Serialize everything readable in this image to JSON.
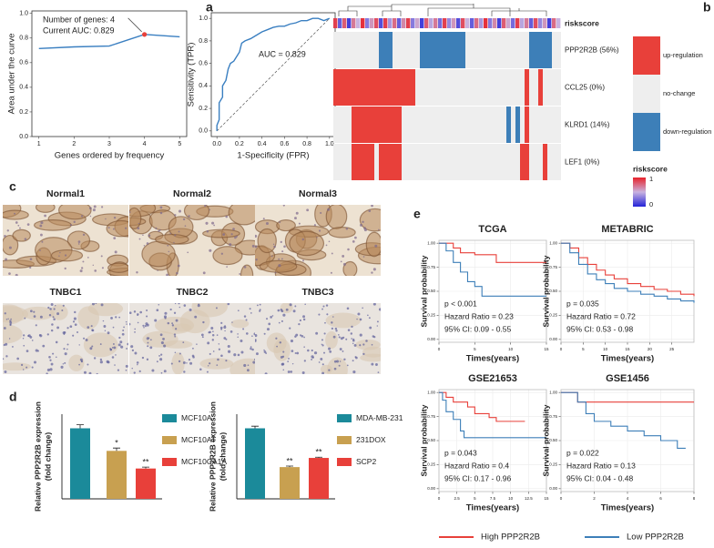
{
  "chart_data": [
    {
      "type": "line",
      "label": "a",
      "xlabel": "Genes ordered by frequency",
      "ylabel": "Area under the curve",
      "x": [
        1,
        2,
        3,
        4,
        5
      ],
      "values": [
        0.715,
        0.728,
        0.735,
        0.829,
        0.81
      ],
      "color": "#3a7fc1",
      "highlight_x": 4,
      "highlight_color": "#e8403a",
      "annotations": [
        "Number of genes: 4",
        "Current AUC: 0.829"
      ],
      "annotation_color": "#e8403a",
      "xlim": [
        0.8,
        5.2
      ],
      "ylim": [
        0,
        1.02
      ],
      "xticks": [
        1,
        2,
        3,
        4,
        5
      ],
      "yticks": [
        {
          "value": 0,
          "label": "0.0"
        },
        0.2,
        0.4,
        0.6,
        0.8,
        {
          "value": 1,
          "label": "1.0"
        }
      ]
    },
    {
      "type": "line",
      "xlabel": "1-Specificity (FPR)",
      "ylabel": "Sensitivity (TPR)",
      "x": [
        0,
        0,
        0.02,
        0.02,
        0.05,
        0.05,
        0.08,
        0.1,
        0.12,
        0.15,
        0.2,
        0.22,
        0.25,
        0.3,
        0.35,
        0.4,
        0.45,
        0.5,
        0.55,
        0.6,
        0.65,
        0.7,
        0.75,
        0.8,
        0.85,
        0.9,
        0.95,
        1
      ],
      "values": [
        0,
        0.05,
        0.1,
        0.25,
        0.3,
        0.4,
        0.45,
        0.55,
        0.6,
        0.62,
        0.7,
        0.78,
        0.8,
        0.82,
        0.85,
        0.88,
        0.9,
        0.92,
        0.93,
        0.93,
        0.95,
        0.96,
        0.98,
        0.98,
        1,
        1,
        0.98,
        1
      ],
      "color": "#3a7fc1",
      "annotations": [
        "AUC = 0.829"
      ],
      "annotation_color": "#3a7fc1",
      "xlim": [
        -0.05,
        1.05
      ],
      "ylim": [
        -0.05,
        1.05
      ],
      "xticks": [
        {
          "value": 0,
          "label": "0.0"
        },
        0.2,
        0.4,
        0.6,
        0.8,
        {
          "value": 1,
          "label": "1.0"
        }
      ],
      "yticks": [
        {
          "value": 0,
          "label": "0.0"
        },
        0.2,
        0.4,
        0.6,
        0.8,
        {
          "value": 1,
          "label": "1.0"
        }
      ]
    },
    {
      "type": "heatmap",
      "label": "b",
      "rows": [
        "PPP2R2B (56%)",
        "CCL25 (0%)",
        "KLRD1 (14%)",
        "LEF1 (0%)"
      ],
      "values": [
        [
          0,
          0,
          0,
          0,
          0,
          0,
          0,
          0,
          0,
          0,
          -1,
          -1,
          -1,
          0,
          0,
          0,
          0,
          0,
          0,
          -1,
          -1,
          -1,
          -1,
          -1,
          -1,
          -1,
          -1,
          -1,
          -1,
          0,
          0,
          0,
          0,
          0,
          0,
          0,
          0,
          0,
          0,
          0,
          0,
          0,
          0,
          -1,
          -1,
          -1,
          -1,
          -1,
          0,
          0
        ],
        [
          1,
          1,
          1,
          1,
          1,
          1,
          1,
          1,
          1,
          1,
          1,
          1,
          1,
          1,
          1,
          1,
          1,
          1,
          0,
          0,
          0,
          0,
          0,
          0,
          0,
          0,
          0,
          0,
          0,
          0,
          0,
          0,
          0,
          0,
          0,
          0,
          0,
          0,
          0,
          0,
          0,
          0,
          1,
          0,
          0,
          1,
          0,
          0,
          0,
          0
        ],
        [
          0,
          0,
          0,
          0,
          1,
          1,
          1,
          1,
          1,
          1,
          1,
          1,
          1,
          1,
          1,
          0,
          0,
          0,
          0,
          0,
          0,
          0,
          0,
          0,
          0,
          0,
          0,
          0,
          0,
          0,
          0,
          0,
          0,
          0,
          0,
          0,
          0,
          0,
          -1,
          0,
          -1,
          0,
          1,
          0,
          0,
          0,
          0,
          0,
          0,
          0
        ],
        [
          0,
          0,
          0,
          0,
          1,
          1,
          1,
          1,
          1,
          0,
          1,
          1,
          1,
          1,
          1,
          0,
          0,
          0,
          0,
          0,
          0,
          0,
          0,
          0,
          0,
          0,
          0,
          0,
          0,
          0,
          0,
          0,
          0,
          0,
          0,
          0,
          0,
          0,
          0,
          0,
          0,
          1,
          1,
          0,
          0,
          0,
          1,
          0,
          0,
          0
        ]
      ],
      "riskscore_label": "riskscore",
      "riskscore": [
        0.9,
        0.2,
        0.8,
        0.1,
        0.7,
        0.5,
        0.95,
        0.3,
        0.6,
        0.85,
        0.15,
        0.9,
        0.4,
        0.75,
        0.2,
        0.65,
        0.9,
        0.3,
        0.55,
        0.1,
        0.8,
        0.45,
        0.7,
        0.25,
        0.9,
        0.35,
        0.6,
        0.15,
        0.85,
        0.5,
        0.2,
        0.75,
        0.4,
        0.95,
        0.3,
        0.65,
        0.1,
        0.8,
        0.55,
        0.25,
        0.9,
        0.45,
        0.7,
        0.2,
        0.85,
        0.35,
        0.6,
        0.1,
        0.75,
        0.5
      ],
      "riskscore_ticks": [
        1,
        0
      ],
      "riskscore_colors": [
        "#2323d8",
        "#c9b3e0",
        "#e8222a"
      ],
      "legend": [
        {
          "label": "up-regulation",
          "value": 1,
          "color": "#e8403a"
        },
        {
          "label": "no-change",
          "value": 0,
          "color": "#eeeeee"
        },
        {
          "label": "down-regulation",
          "value": -1,
          "color": "#3d7fb8"
        }
      ]
    },
    {
      "type": "bar",
      "label": "d",
      "ylabel": [
        "Relative PPP2R2B expression",
        "(fold change)"
      ],
      "categories": [
        "MCF10A",
        "MCF10AT",
        "MCF10CA1A"
      ],
      "values": [
        1.0,
        0.68,
        0.43
      ],
      "errors": [
        0.05,
        0.04,
        0.02
      ],
      "significance": [
        null,
        "*",
        "**"
      ],
      "colors": [
        "#1b8a9a",
        "#c8a050",
        "#e8403a"
      ],
      "ylim": [
        0,
        1.2
      ]
    },
    {
      "type": "bar",
      "ylabel": [
        "Relative PPP2R2B expression",
        "(fold change)"
      ],
      "categories": [
        "MDA-MB-231",
        "231DOX",
        "SCP2"
      ],
      "values": [
        1.0,
        0.45,
        0.58
      ],
      "errors": [
        0.03,
        0.015,
        0.01
      ],
      "significance": [
        null,
        "**",
        "**"
      ],
      "colors": [
        "#1b8a9a",
        "#c8a050",
        "#e8403a"
      ],
      "ylim": [
        0,
        1.2
      ]
    },
    {
      "type": "step",
      "label": "e",
      "title": "TCGA",
      "ylabel": "Survival probability",
      "xlabel": "Times(years)",
      "annotations": [
        "p < 0.001",
        "Hazard Ratio = 0.23",
        "95% CI: 0.09 - 0.55"
      ],
      "xlim": [
        0,
        15
      ],
      "ylim": [
        -0.03,
        1.03
      ],
      "xticks": [
        0,
        5,
        10,
        15
      ],
      "yticks": [
        {
          "value": 0,
          "label": "0.00"
        },
        {
          "value": 0.25,
          "label": "0.25"
        },
        {
          "value": 0.5,
          "label": "0.50"
        },
        {
          "value": 0.75,
          "label": "0.75"
        },
        {
          "value": 1,
          "label": "1.00"
        }
      ],
      "series": [
        {
          "x": [
            0,
            2,
            3,
            5,
            8,
            15
          ],
          "values": [
            1,
            0.95,
            0.9,
            0.88,
            0.8,
            0.8
          ]
        },
        {
          "x": [
            0,
            1,
            2,
            3,
            4,
            5,
            6,
            15
          ],
          "values": [
            1,
            0.92,
            0.8,
            0.7,
            0.6,
            0.55,
            0.45,
            0.45
          ]
        }
      ]
    },
    {
      "type": "step",
      "title": "METABRIC",
      "ylabel": "Survival probability",
      "xlabel": "Times(years)",
      "annotations": [
        "p = 0.035",
        "Hazard Ratio = 0.72",
        "95% CI: 0.53 - 0.98"
      ],
      "xlim": [
        0,
        30
      ],
      "ylim": [
        -0.03,
        1.03
      ],
      "xticks": [
        0,
        5,
        10,
        15,
        20,
        25
      ],
      "yticks": [
        {
          "value": 0,
          "label": "0.00"
        },
        {
          "value": 0.25,
          "label": "0.25"
        },
        {
          "value": 0.5,
          "label": "0.50"
        },
        {
          "value": 0.75,
          "label": "0.75"
        },
        {
          "value": 1,
          "label": "1.00"
        }
      ],
      "series": [
        {
          "x": [
            0,
            2,
            4,
            6,
            8,
            10,
            12,
            15,
            18,
            21,
            24,
            27,
            30
          ],
          "values": [
            1,
            0.95,
            0.85,
            0.78,
            0.72,
            0.67,
            0.63,
            0.58,
            0.55,
            0.52,
            0.5,
            0.47,
            0.45
          ]
        },
        {
          "x": [
            0,
            2,
            4,
            6,
            8,
            10,
            12,
            15,
            18,
            21,
            24,
            27,
            30
          ],
          "values": [
            1,
            0.9,
            0.78,
            0.68,
            0.62,
            0.58,
            0.53,
            0.5,
            0.47,
            0.45,
            0.42,
            0.4,
            0.38
          ]
        }
      ]
    },
    {
      "type": "step",
      "title": "GSE21653",
      "ylabel": "Survival probability",
      "xlabel": "Times(years)",
      "annotations": [
        "p = 0.043",
        "Hazard Ratio = 0.4",
        "95% CI: 0.17 - 0.96"
      ],
      "xlim": [
        0,
        15
      ],
      "ylim": [
        -0.03,
        1.03
      ],
      "xticks": [
        0,
        2.5,
        5,
        7.5,
        10,
        12.5,
        15
      ],
      "yticks": [
        {
          "value": 0,
          "label": "0.00"
        },
        {
          "value": 0.25,
          "label": "0.25"
        },
        {
          "value": 0.5,
          "label": "0.50"
        },
        {
          "value": 0.75,
          "label": "0.75"
        },
        {
          "value": 1,
          "label": "1.00"
        }
      ],
      "series": [
        {
          "x": [
            0,
            1,
            2,
            4,
            5,
            7,
            8,
            12
          ],
          "values": [
            1,
            0.95,
            0.9,
            0.85,
            0.78,
            0.74,
            0.7,
            0.7
          ]
        },
        {
          "x": [
            0,
            0.5,
            1,
            2,
            3,
            3.5,
            15
          ],
          "values": [
            1,
            0.92,
            0.8,
            0.72,
            0.6,
            0.53,
            0.53
          ]
        }
      ]
    },
    {
      "type": "step",
      "title": "GSE1456",
      "ylabel": "Survival probability",
      "xlabel": "Times(years)",
      "annotations": [
        "p = 0.022",
        "Hazard Ratio = 0.13",
        "95% CI: 0.04 - 0.48"
      ],
      "xlim": [
        0,
        8
      ],
      "ylim": [
        -0.03,
        1.03
      ],
      "xticks": [
        0,
        2,
        4,
        6,
        8
      ],
      "yticks": [
        {
          "value": 0,
          "label": "0.00"
        },
        {
          "value": 0.25,
          "label": "0.25"
        },
        {
          "value": 0.5,
          "label": "0.50"
        },
        {
          "value": 0.75,
          "label": "0.75"
        },
        {
          "value": 1,
          "label": "1.00"
        }
      ],
      "series": [
        {
          "x": [
            0,
            1,
            8
          ],
          "values": [
            1,
            0.9,
            0.9
          ]
        },
        {
          "x": [
            0,
            1,
            1.5,
            2,
            3,
            4,
            5,
            6,
            7,
            7.5
          ],
          "values": [
            1,
            0.9,
            0.78,
            0.7,
            0.65,
            0.6,
            0.55,
            0.5,
            0.42,
            0.42
          ]
        }
      ]
    }
  ],
  "survival_legend": [
    {
      "name": "High PPP2R2B",
      "color": "#e8403a"
    },
    {
      "name": "Low PPP2R2B",
      "color": "#3d7fb8"
    }
  ],
  "histology": {
    "label": "c",
    "titles": [
      "Normal1",
      "Normal2",
      "Normal3",
      "TNBC1",
      "TNBC2",
      "TNBC3"
    ]
  }
}
